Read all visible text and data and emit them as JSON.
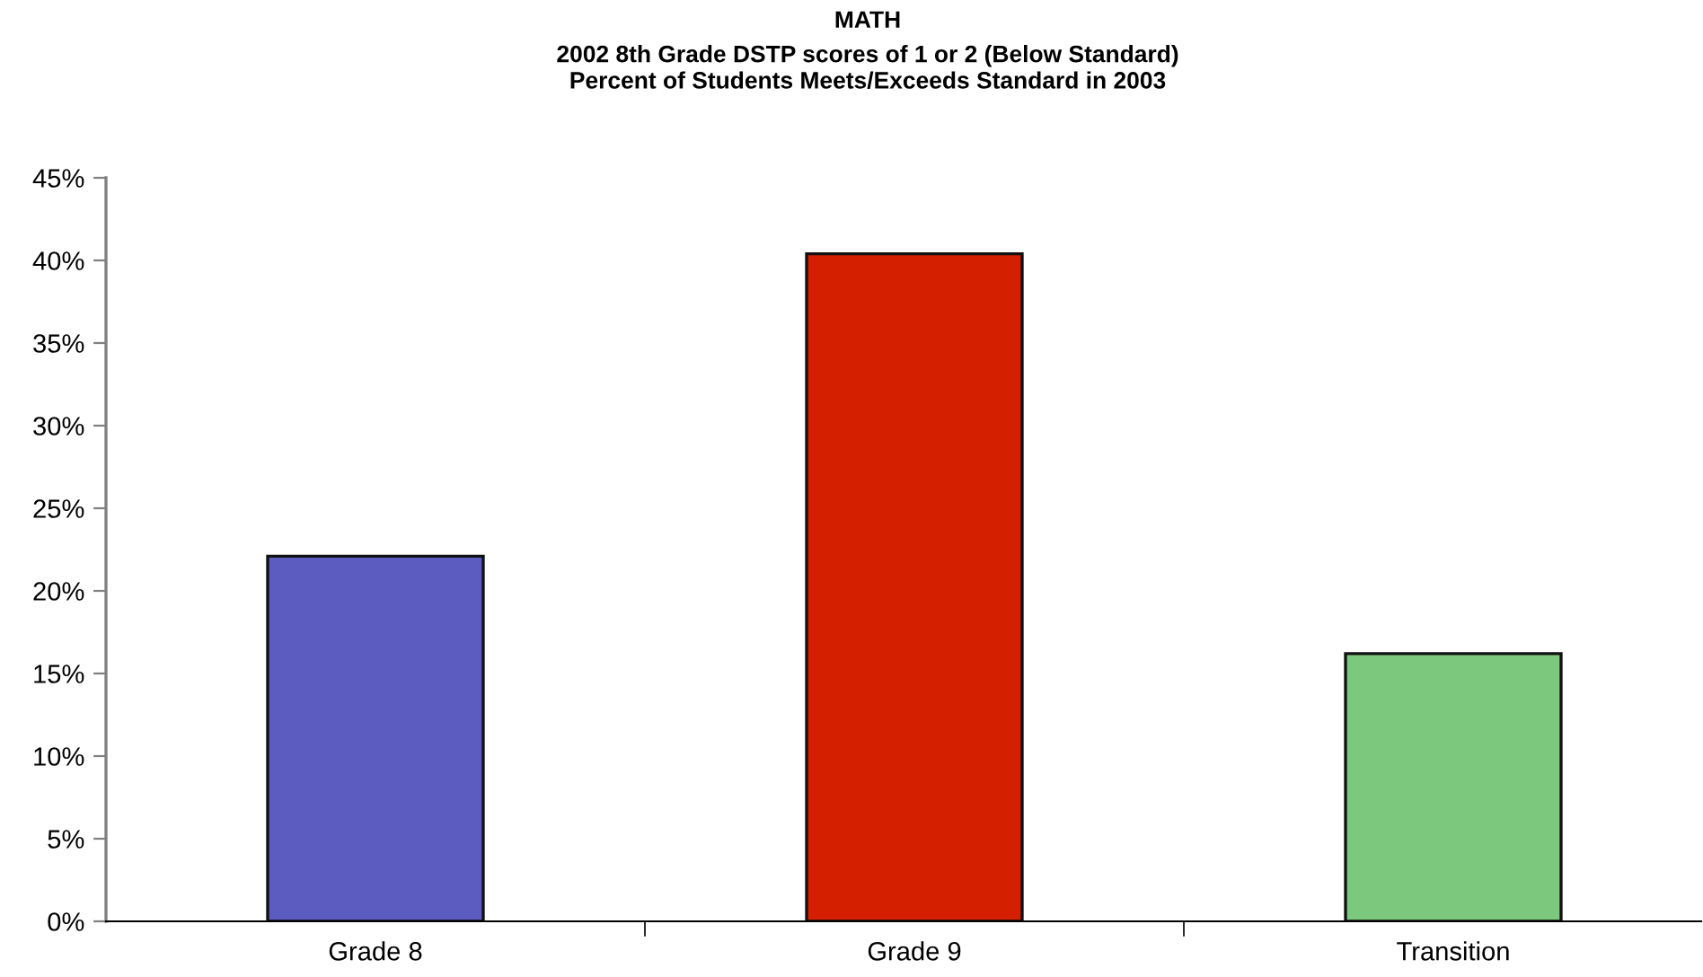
{
  "chart_data": {
    "type": "bar",
    "title": "MATH",
    "subtitle": "2002 8th Grade DSTP scores of 1 or 2 (Below Standard)\nPercent of Students Meets/Exceeds Standard in 2003",
    "categories": [
      "Grade 8",
      "Grade 9",
      "Transition"
    ],
    "values": [
      22.1,
      40.4,
      16.2
    ],
    "colors": [
      "#5c5cc0",
      "#d42000",
      "#7cc87c"
    ],
    "ylim": [
      0,
      45
    ],
    "yticks": [
      {
        "value": 0,
        "label": "0%"
      },
      {
        "value": 5,
        "label": "5%"
      },
      {
        "value": 10,
        "label": "10%"
      },
      {
        "value": 15,
        "label": "15%"
      },
      {
        "value": 20,
        "label": "20%"
      },
      {
        "value": 25,
        "label": "25%"
      },
      {
        "value": 30,
        "label": "30%"
      },
      {
        "value": 35,
        "label": "35%"
      },
      {
        "value": 40,
        "label": "40%"
      },
      {
        "value": 45,
        "label": "45%"
      }
    ],
    "grid": false,
    "legend": false
  }
}
